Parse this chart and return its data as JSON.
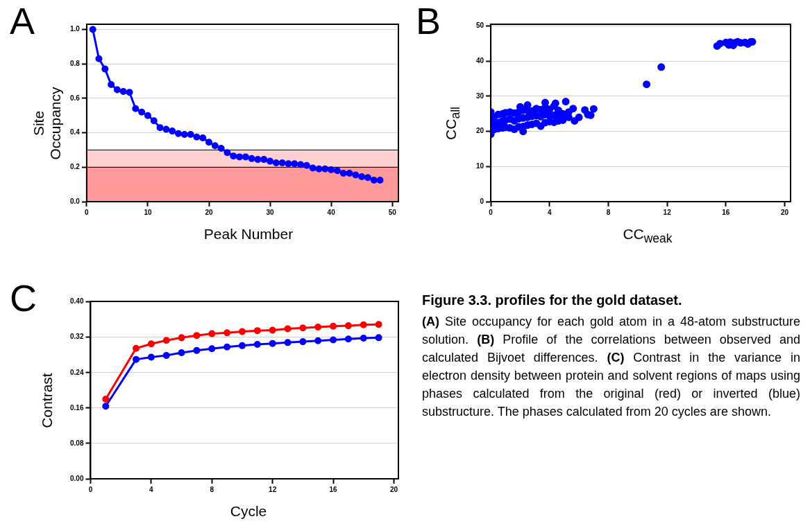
{
  "chart_data": [
    {
      "type": "line",
      "annotations": [
        "A"
      ],
      "xlabel": "Peak Number",
      "ylabel": "Site Occupancy",
      "xlim": [
        0,
        51
      ],
      "ylim": [
        0,
        1.03
      ],
      "xticks": [
        0,
        10,
        20,
        30,
        40,
        50
      ],
      "yticks": [
        {
          "value": 0,
          "label": "0.0"
        },
        {
          "value": 0.2,
          "label": "0.2"
        },
        {
          "value": 0.4,
          "label": "0.4"
        },
        {
          "value": 0.6,
          "label": "0.6"
        },
        {
          "value": 0.8,
          "label": "0.8"
        },
        {
          "value": 1,
          "label": "1.0"
        }
      ],
      "grid": "y",
      "marker": "circle",
      "line_style": "solid",
      "bands": [
        {
          "axis": "y",
          "from": 0,
          "to": 0.2,
          "color": "#ff9a9a"
        },
        {
          "axis": "y",
          "from": 0.2,
          "to": 0.3,
          "color": "#ffd0d0"
        }
      ],
      "series": [
        {
          "color": "#0000ff",
          "x": [
            1,
            2,
            3,
            4,
            5,
            6,
            7,
            8,
            9,
            10,
            11,
            12,
            13,
            14,
            15,
            16,
            17,
            18,
            19,
            20,
            21,
            22,
            23,
            24,
            25,
            26,
            27,
            28,
            29,
            30,
            31,
            32,
            33,
            34,
            35,
            36,
            37,
            38,
            39,
            40,
            41,
            42,
            43,
            44,
            45,
            46,
            47,
            48
          ],
          "values": [
            1.0,
            0.83,
            0.77,
            0.68,
            0.65,
            0.64,
            0.635,
            0.54,
            0.52,
            0.5,
            0.47,
            0.43,
            0.42,
            0.41,
            0.395,
            0.39,
            0.39,
            0.375,
            0.37,
            0.345,
            0.325,
            0.31,
            0.285,
            0.265,
            0.26,
            0.26,
            0.25,
            0.245,
            0.245,
            0.235,
            0.225,
            0.225,
            0.22,
            0.22,
            0.215,
            0.21,
            0.195,
            0.19,
            0.19,
            0.185,
            0.18,
            0.165,
            0.165,
            0.155,
            0.145,
            0.14,
            0.125,
            0.125
          ]
        }
      ]
    },
    {
      "type": "scatter",
      "annotations": [
        "B"
      ],
      "xlabel": "CC$_{weak}$",
      "ylabel": "CC$_{all}$",
      "xlim": [
        0,
        20.4
      ],
      "ylim": [
        0,
        50.5
      ],
      "xticks": [
        0,
        4,
        8,
        12,
        16,
        20
      ],
      "yticks": [
        0,
        10,
        20,
        30,
        40,
        50
      ],
      "grid": "y",
      "marker": "circle",
      "series": [
        {
          "color": "#0000ff",
          "x": [
            0,
            0,
            0,
            0.2,
            0.2,
            0.2,
            0.5,
            0.5,
            0.5,
            0.8,
            0.8,
            0.8,
            1.0,
            1.0,
            1.0,
            1.3,
            1.3,
            1.3,
            1.6,
            1.6,
            1.6,
            1.9,
            1.9,
            1.9,
            2.2,
            2.2,
            2.2,
            2.5,
            2.5,
            2.5,
            2.8,
            2.8,
            2.8,
            3.1,
            3.1,
            3.1,
            3.4,
            3.4,
            3.4,
            3.7,
            3.7,
            3.7,
            4.0,
            4.0,
            4.0,
            4.3,
            4.3,
            4.3,
            4.6,
            4.6,
            4.6,
            4.9,
            4.9,
            5.3,
            5.3,
            2.2,
            2.0,
            2.5,
            3.7,
            4.4,
            5.1,
            5.6,
            5.7,
            6.0,
            6.4,
            6.6,
            6.8,
            7.0,
            10.6,
            11.6,
            15.4,
            15.6,
            16.0,
            16.2,
            16.3,
            16.5,
            16.6,
            16.8,
            17.0,
            17.3,
            17.5,
            17.7,
            17.8
          ],
          "values": [
            19.2,
            23,
            25.5,
            20.5,
            22,
            24,
            20.8,
            22.5,
            24.8,
            21,
            23,
            25,
            21.2,
            23.2,
            25.3,
            21,
            23.5,
            25.5,
            20.6,
            23,
            25.2,
            21.3,
            23.6,
            25.5,
            21.4,
            23.8,
            26,
            21.8,
            24,
            26,
            22,
            24.3,
            25.8,
            22.3,
            24.5,
            26.5,
            21.5,
            24.2,
            26.2,
            22.5,
            24.8,
            26.8,
            22.8,
            24.5,
            26.3,
            22.6,
            24.6,
            27.2,
            23,
            24.8,
            26,
            23.2,
            25,
            24,
            25.5,
            20,
            27,
            27.5,
            28.2,
            28,
            28.5,
            26.5,
            23,
            24,
            26.1,
            24.8,
            24.6,
            26.4,
            33.4,
            38.3,
            44.3,
            45,
            45.3,
            44.6,
            45.4,
            44.5,
            45.2,
            45.5,
            45.2,
            45.3,
            44.9,
            45.5,
            45.5
          ]
        }
      ]
    },
    {
      "type": "line",
      "annotations": [
        "C"
      ],
      "xlabel": "Cycle",
      "ylabel": "Contrast",
      "xlim": [
        0,
        20.3
      ],
      "ylim": [
        0,
        0.401
      ],
      "xticks": [
        0,
        4,
        8,
        12,
        16,
        20
      ],
      "yticks": [
        {
          "value": 0,
          "label": "0.00"
        },
        {
          "value": 0.08,
          "label": "0.08"
        },
        {
          "value": 0.16,
          "label": "0.16"
        },
        {
          "value": 0.24,
          "label": "0.24"
        },
        {
          "value": 0.32,
          "label": "0.32"
        },
        {
          "value": 0.4,
          "label": "0.40"
        }
      ],
      "grid": "y",
      "marker": "circle",
      "line_style": "solid",
      "series": [
        {
          "color": "#ff0000",
          "x": [
            1,
            3,
            4,
            5,
            6,
            7,
            8,
            9,
            10,
            11,
            12,
            13,
            14,
            15,
            16,
            17,
            18,
            19
          ],
          "values": [
            0.18,
            0.295,
            0.305,
            0.313,
            0.319,
            0.324,
            0.328,
            0.33,
            0.333,
            0.335,
            0.336,
            0.339,
            0.341,
            0.343,
            0.345,
            0.346,
            0.348,
            0.349
          ]
        },
        {
          "color": "#0000ff",
          "x": [
            1,
            3,
            4,
            5,
            6,
            7,
            8,
            9,
            10,
            11,
            12,
            13,
            14,
            15,
            16,
            17,
            18,
            19
          ],
          "values": [
            0.164,
            0.27,
            0.275,
            0.279,
            0.285,
            0.29,
            0.294,
            0.298,
            0.301,
            0.304,
            0.306,
            0.308,
            0.31,
            0.312,
            0.314,
            0.316,
            0.318,
            0.319
          ]
        }
      ]
    },
    {
      "type": "other",
      "title": "Figure 3.3. profiles for the gold dataset.",
      "annotations": [
        "(A) Site occupancy for each gold atom in a 48-atom substructure solution. (B) Profile of the correlations between observed and calculated Bijvoet differences. (C) Contrast in the variance in electron density between protein and solvent regions of maps using phases calculated from the original (red) or inverted (blue) substructure. The phases calculated from 20 cycles are shown."
      ]
    }
  ]
}
